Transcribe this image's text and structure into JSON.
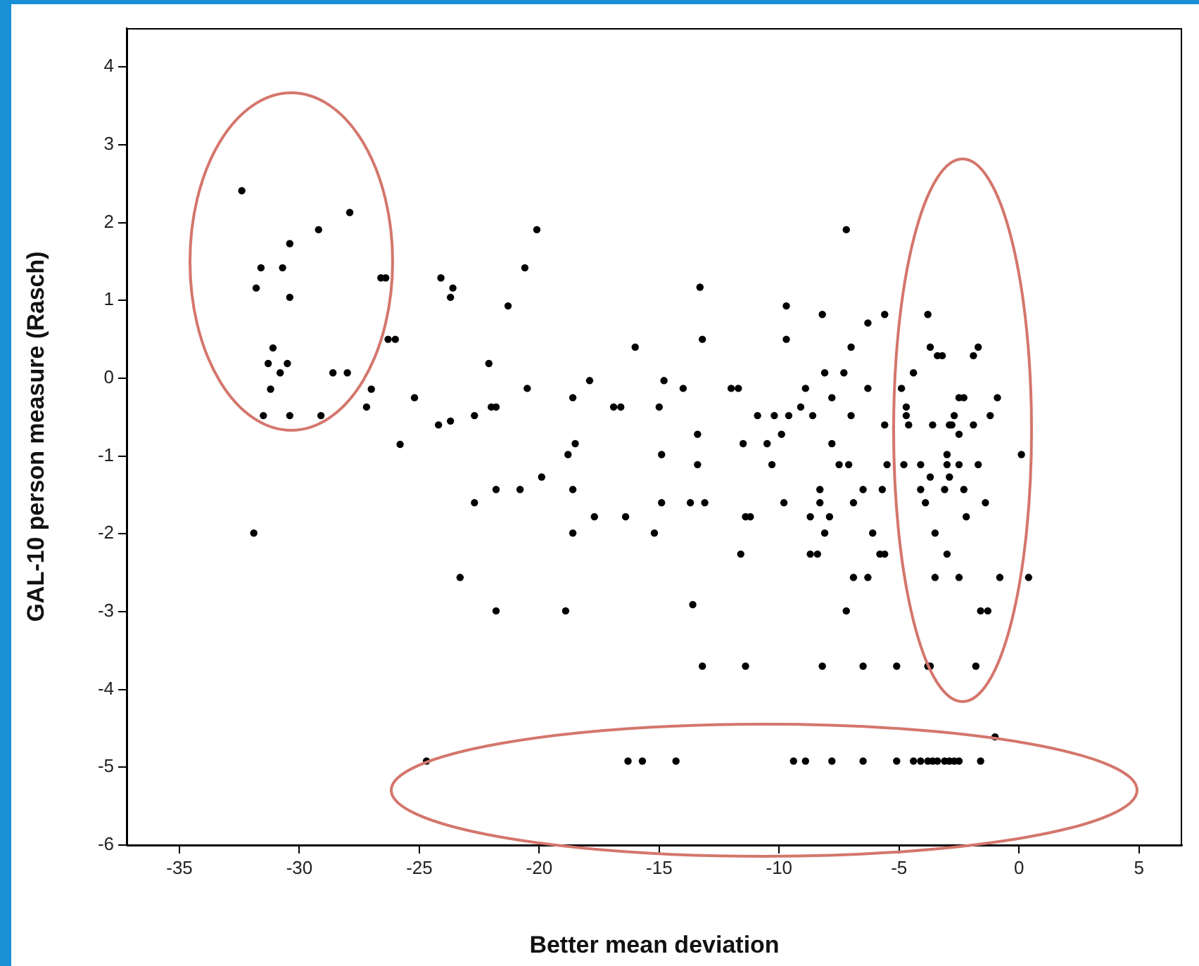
{
  "chart_data": {
    "type": "scatter",
    "xlabel": "Better mean deviation",
    "ylabel": "GAL-10 person measure (Rasch)",
    "x": [
      -32.4,
      -27.9,
      -29.2,
      -30.4,
      -31.6,
      -30.7,
      -31.8,
      -30.4,
      -26.6,
      -26.4,
      -24.1,
      -23.6,
      -23.7,
      -26.3,
      -26.0,
      -31.1,
      -31.3,
      -30.5,
      -30.8,
      -28.6,
      -28.0,
      -31.2,
      -27.0,
      -25.2,
      -27.2,
      -31.5,
      -30.4,
      -29.1,
      -24.2,
      -23.7,
      -22.7,
      -25.8,
      -22.7,
      -31.9,
      -23.3,
      -20.1,
      -20.6,
      -21.3,
      -13.3,
      -13.2,
      -16.0,
      -22.1,
      -17.9,
      -14.8,
      -14.0,
      -20.5,
      -18.6,
      -22.0,
      -21.8,
      -16.9,
      -16.6,
      -15.0,
      -13.4,
      -18.5,
      -18.8,
      -14.9,
      -13.4,
      -19.9,
      -21.8,
      -20.8,
      -18.6,
      -14.9,
      -13.7,
      -13.1,
      -17.7,
      -16.4,
      -18.6,
      -15.2,
      -21.8,
      -18.9,
      -13.6,
      -7.2,
      -9.7,
      -8.2,
      -5.6,
      -3.8,
      -6.3,
      -9.7,
      -7.0,
      -8.1,
      -7.3,
      -4.4,
      -12.0,
      -11.7,
      -8.9,
      -6.3,
      -4.9,
      -7.8,
      -4.7,
      -9.1,
      -10.9,
      -10.2,
      -9.6,
      -8.6,
      -7.0,
      -4.7,
      -5.6,
      -4.6,
      -11.5,
      -10.5,
      -9.9,
      -7.8,
      -10.3,
      -7.5,
      -7.1,
      -5.5,
      -4.8,
      -4.1,
      -8.3,
      -6.5,
      -5.7,
      -4.1,
      -9.8,
      -8.3,
      -6.9,
      -3.9,
      -11.4,
      -11.2,
      -8.7,
      -7.9,
      -8.1,
      -6.1,
      -11.6,
      -8.7,
      -8.4,
      -5.8,
      -5.6,
      -6.9,
      -6.3,
      -7.2,
      -3.7,
      -3.4,
      -3.2,
      -1.7,
      -1.9,
      -2.5,
      -2.3,
      -0.9,
      -2.7,
      -1.2,
      -3.6,
      -2.9,
      -2.8,
      -1.9,
      -2.5,
      -3.0,
      0.1,
      -3.0,
      -2.5,
      -1.7,
      -3.7,
      -2.9,
      -3.1,
      -2.3,
      -1.4,
      -2.2,
      -3.5,
      -3.0,
      -3.5,
      -2.5,
      -0.8,
      0.4,
      -1.6,
      -1.3,
      -13.2,
      -11.4,
      -8.2,
      -6.5,
      -5.1,
      -3.8,
      -3.7,
      -1.8,
      -24.7,
      -16.3,
      -15.7,
      -14.3,
      -9.4,
      -8.9,
      -7.8,
      -6.5,
      -5.1,
      -4.4,
      -4.1,
      -3.8,
      -3.6,
      -3.4,
      -3.1,
      -2.9,
      -2.7,
      -2.5,
      -1.6,
      -1.0
    ],
    "series": [
      {
        "color": "#000000",
        "values": [
          2.41,
          2.13,
          1.91,
          1.73,
          1.42,
          1.42,
          1.16,
          1.04,
          1.29,
          1.29,
          1.29,
          1.16,
          1.04,
          0.5,
          0.5,
          0.39,
          0.19,
          0.19,
          0.07,
          0.07,
          0.07,
          -0.14,
          -0.14,
          -0.25,
          -0.37,
          -0.48,
          -0.48,
          -0.48,
          -0.6,
          -0.55,
          -0.48,
          -0.85,
          -1.6,
          -1.99,
          -2.56,
          1.91,
          1.42,
          0.93,
          1.17,
          0.5,
          0.4,
          0.19,
          -0.03,
          -0.03,
          -0.13,
          -0.13,
          -0.25,
          -0.37,
          -0.37,
          -0.37,
          -0.37,
          -0.37,
          -0.72,
          -0.84,
          -0.98,
          -0.98,
          -1.11,
          -1.27,
          -1.43,
          -1.43,
          -1.43,
          -1.6,
          -1.6,
          -1.6,
          -1.78,
          -1.78,
          -1.99,
          -1.99,
          -2.99,
          -2.99,
          -2.91,
          1.91,
          0.93,
          0.82,
          0.82,
          0.82,
          0.71,
          0.5,
          0.4,
          0.07,
          0.07,
          0.07,
          -0.13,
          -0.13,
          -0.13,
          -0.13,
          -0.13,
          -0.25,
          -0.37,
          -0.37,
          -0.48,
          -0.48,
          -0.48,
          -0.48,
          -0.48,
          -0.48,
          -0.6,
          -0.6,
          -0.84,
          -0.84,
          -0.72,
          -0.84,
          -1.11,
          -1.11,
          -1.11,
          -1.11,
          -1.11,
          -1.11,
          -1.43,
          -1.43,
          -1.43,
          -1.43,
          -1.6,
          -1.6,
          -1.6,
          -1.6,
          -1.78,
          -1.78,
          -1.78,
          -1.78,
          -1.99,
          -1.99,
          -2.26,
          -2.26,
          -2.26,
          -2.26,
          -2.26,
          -2.56,
          -2.56,
          -2.99,
          0.4,
          0.29,
          0.29,
          0.4,
          0.29,
          -0.25,
          -0.25,
          -0.25,
          -0.48,
          -0.48,
          -0.6,
          -0.6,
          -0.6,
          -0.6,
          -0.72,
          -0.98,
          -0.98,
          -1.11,
          -1.11,
          -1.11,
          -1.27,
          -1.27,
          -1.43,
          -1.43,
          -1.6,
          -1.78,
          -1.99,
          -2.26,
          -2.56,
          -2.56,
          -2.56,
          -2.56,
          -2.99,
          -2.99,
          -3.7,
          -3.7,
          -3.7,
          -3.7,
          -3.7,
          -3.7,
          -3.7,
          -3.7,
          -4.92,
          -4.92,
          -4.92,
          -4.92,
          -4.92,
          -4.92,
          -4.92,
          -4.92,
          -4.92,
          -4.92,
          -4.92,
          -4.92,
          -4.92,
          -4.92,
          -4.92,
          -4.92,
          -4.92,
          -4.92,
          -4.92,
          -4.61
        ]
      }
    ],
    "xlim": [
      -37.2,
      6.8
    ],
    "xticks": [
      -35,
      -30,
      -25,
      -20,
      -15,
      -10,
      -5,
      0,
      5
    ],
    "ylim": [
      -6,
      4.5
    ],
    "yticks": [
      -6,
      -5,
      -4,
      -3,
      -2,
      -1,
      0,
      1,
      2,
      3,
      4
    ],
    "grid": false,
    "legend": false,
    "marker": "circle"
  }
}
